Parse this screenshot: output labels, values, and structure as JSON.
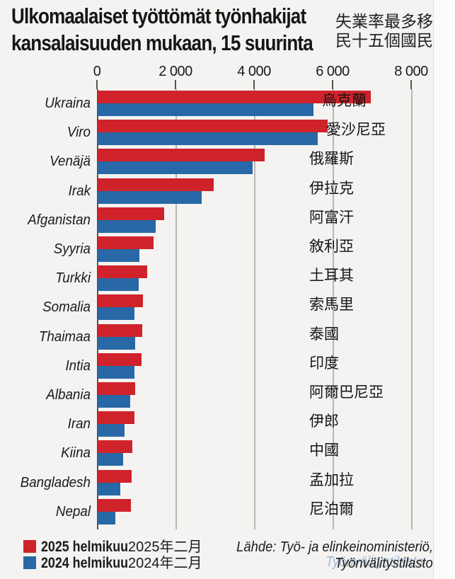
{
  "header": {
    "title_line1": "Ulkomaalaiset työttömät työnhakijat",
    "title_line2": "kansalaisuuden mukaan, 15 suurinta",
    "title_zh_line1": "失業率最多移",
    "title_zh_line2": "民十五個國民"
  },
  "chart_data": {
    "type": "bar",
    "orientation": "horizontal",
    "title": "Ulkomaalaiset työttömät työnhakijat kansalaisuuden mukaan, 15 suurinta",
    "title_zh": "失業率最多移民十五個國民",
    "x_axis": {
      "min": 0,
      "max": 8000,
      "ticks": [
        0,
        2000,
        4000,
        6000,
        8000
      ],
      "tick_labels": [
        "0",
        "2 000",
        "4 000",
        "6 000",
        "8 000"
      ],
      "grid": true
    },
    "categories": [
      "Ukraina",
      "Viro",
      "Venäjä",
      "Irak",
      "Afganistan",
      "Syyria",
      "Turkki",
      "Somalia",
      "Thaimaa",
      "Intia",
      "Albania",
      "Iran",
      "Kiina",
      "Bangladesh",
      "Nepal"
    ],
    "categories_zh": [
      "烏克蘭",
      "愛沙尼亞",
      "俄羅斯",
      "伊拉克",
      "阿富汗",
      "敘利亞",
      "土耳其",
      "索馬里",
      "泰國",
      "印度",
      "阿爾巴尼亞",
      "伊郎",
      "中國",
      "孟加拉",
      "尼泊爾"
    ],
    "series": [
      {
        "name": "2025 helmikuu",
        "name_zh": "2025年二月",
        "color": "#cf222b",
        "values": [
          6950,
          5850,
          4250,
          2950,
          1700,
          1420,
          1270,
          1160,
          1130,
          1110,
          960,
          930,
          880,
          860,
          840
        ]
      },
      {
        "name": "2024 helmikuu",
        "name_zh": "2024年二月",
        "color": "#2868a6",
        "values": [
          5500,
          5600,
          3950,
          2650,
          1480,
          1060,
          1050,
          930,
          950,
          930,
          830,
          680,
          650,
          570,
          450
        ]
      }
    ],
    "legend_position": "bottom-left"
  },
  "source": {
    "line1": "Lähde: Työ- ja elinkeinoministeriö,",
    "line2": "Työnvälitystilasto"
  },
  "colors": {
    "series_2025": "#cf222b",
    "series_2024": "#2868a6",
    "background": "#f4f3f1",
    "gridline": "#b7b6b3",
    "axis": "#56544f"
  }
}
